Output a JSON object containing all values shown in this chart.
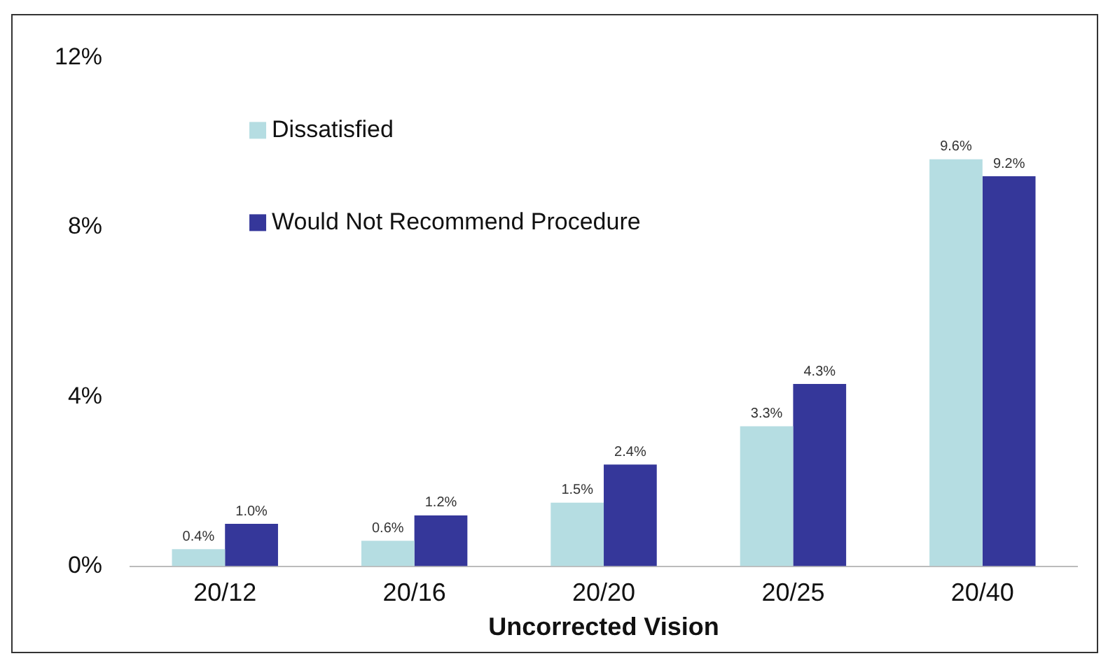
{
  "chart_data": {
    "type": "bar",
    "xlabel": "Uncorrected Vision",
    "categories": [
      "20/12",
      "20/16",
      "20/20",
      "20/25",
      "20/40"
    ],
    "series": [
      {
        "name": "Dissatisfied",
        "color": "#b5dde2",
        "values": [
          0.4,
          0.6,
          1.5,
          3.3,
          9.6
        ],
        "value_labels": [
          "0.4%",
          "0.6%",
          "1.5%",
          "3.3%",
          "9.6%"
        ]
      },
      {
        "name": "Would Not Recommend Procedure",
        "color": "#35379a",
        "values": [
          1.0,
          1.2,
          2.4,
          4.3,
          9.2
        ],
        "value_labels": [
          "1.0%",
          "1.2%",
          "2.4%",
          "4.3%",
          "9.2%"
        ]
      }
    ],
    "ylim": [
      0,
      12
    ],
    "yticks": [
      {
        "value": 0,
        "label": "0%"
      },
      {
        "value": 4,
        "label": "4%"
      },
      {
        "value": 8,
        "label": "8%"
      },
      {
        "value": 12,
        "label": "12%"
      }
    ],
    "grid": false,
    "legend": "top left"
  }
}
